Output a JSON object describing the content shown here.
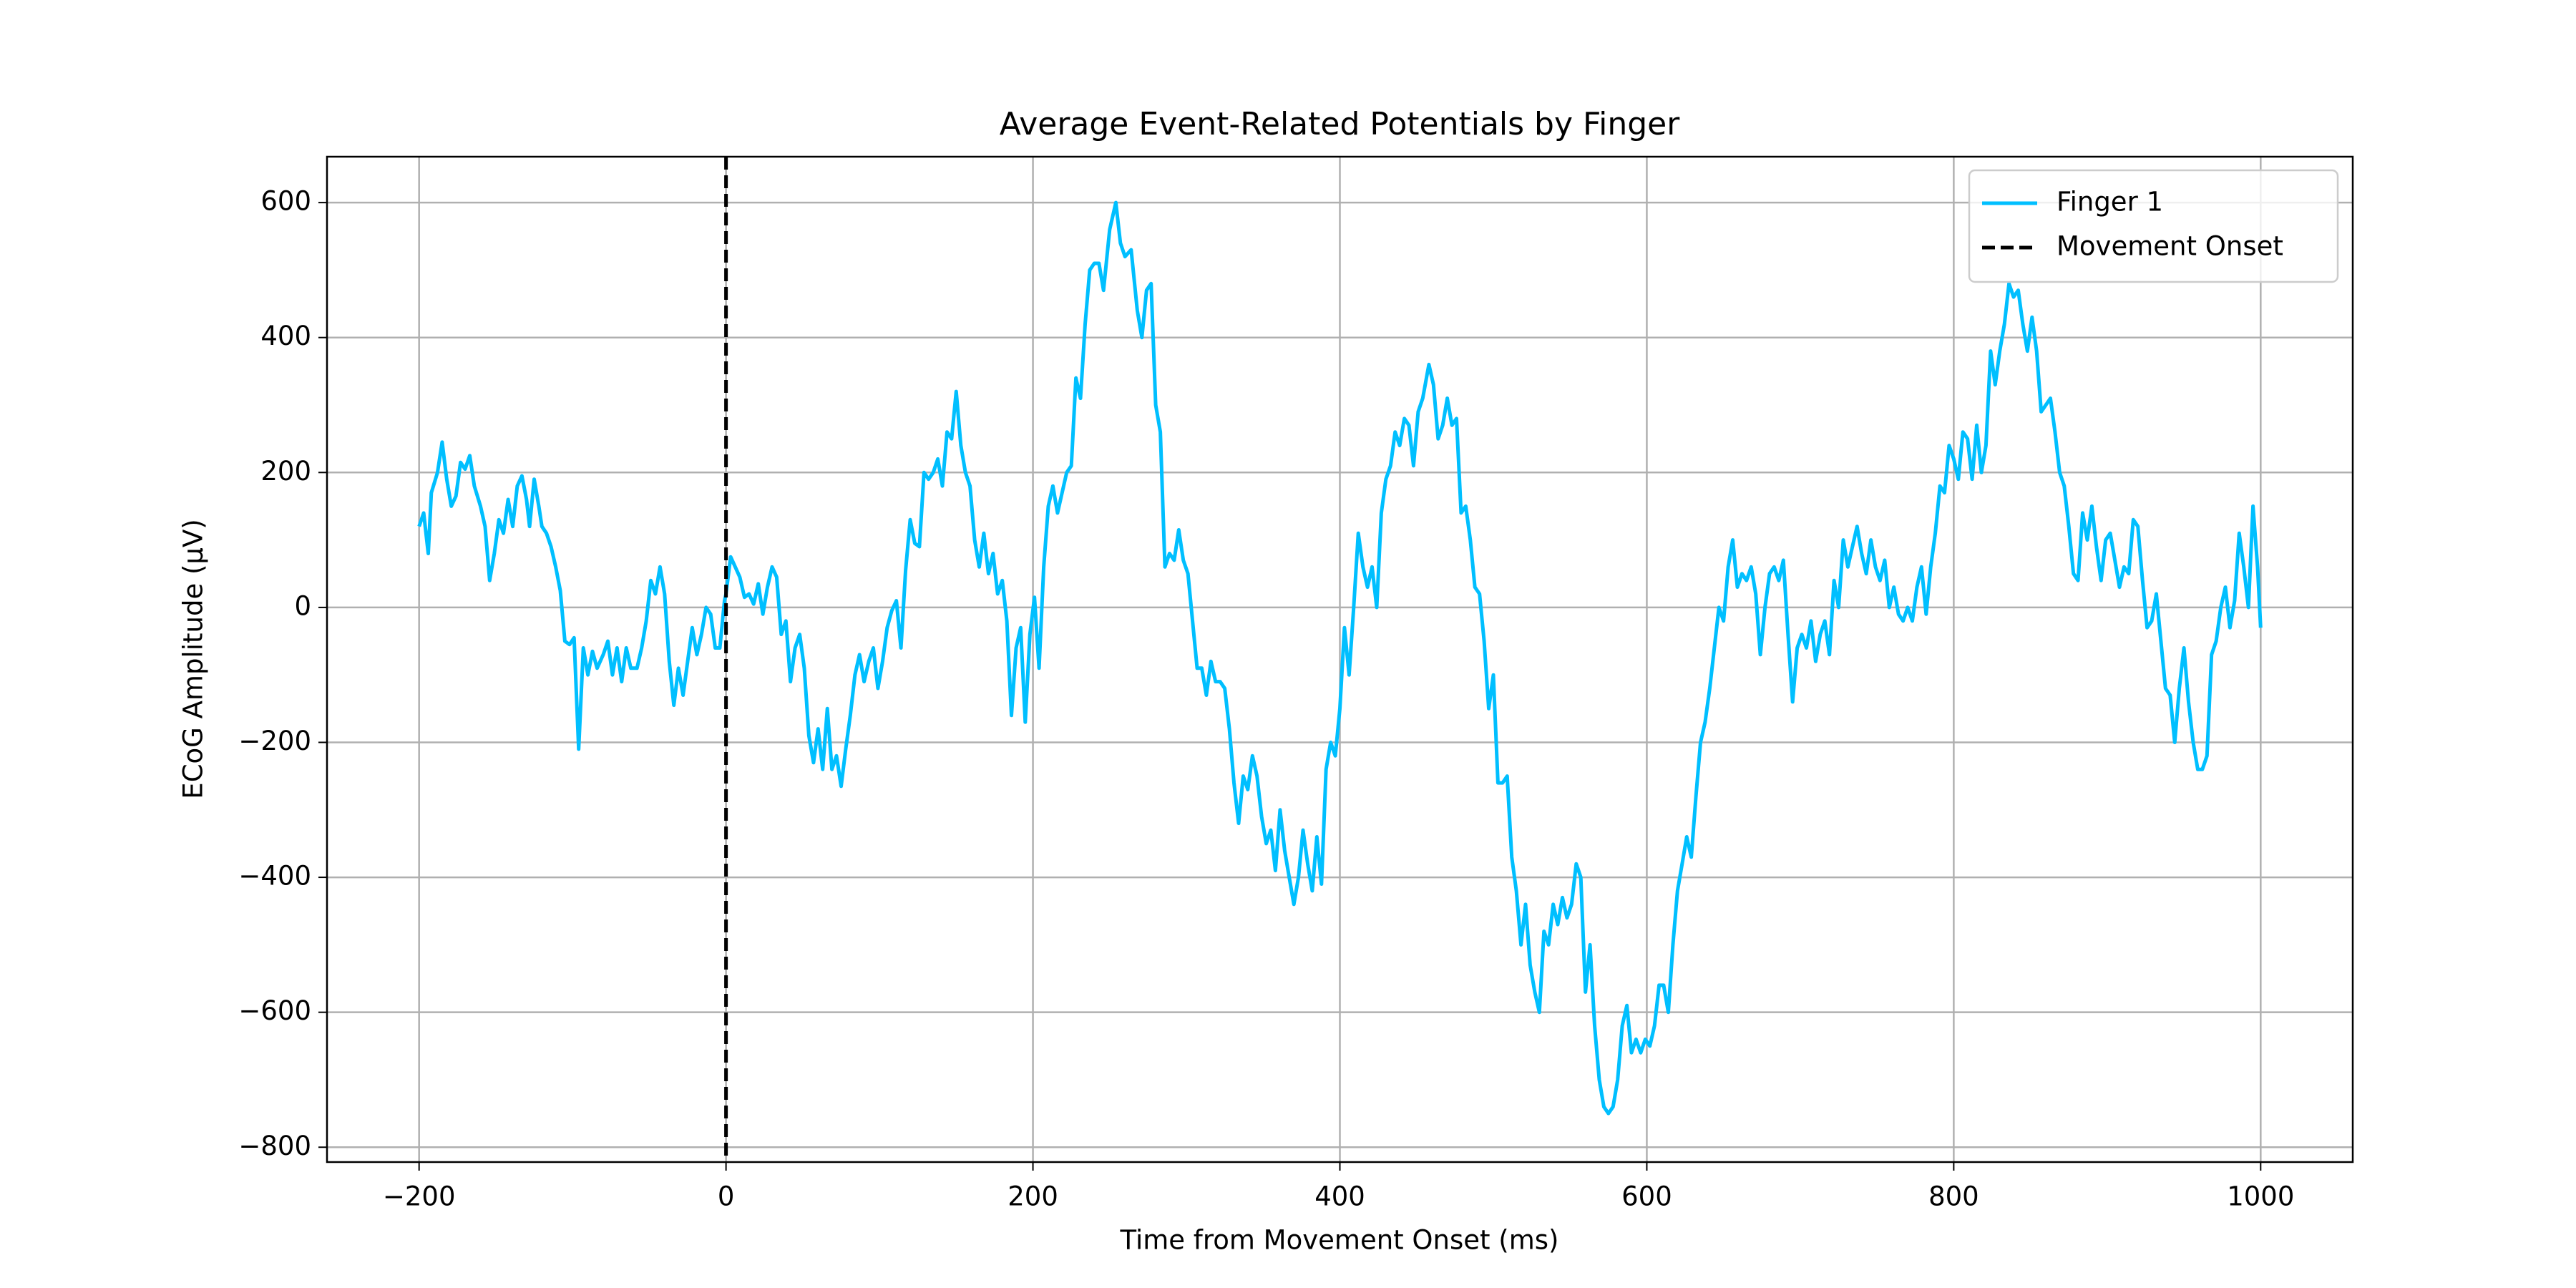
{
  "chart_data": {
    "type": "line",
    "title": "Average Event-Related Potentials by Finger",
    "xlabel": "Time from Movement Onset (ms)",
    "ylabel": "ECoG Amplitude (µV)",
    "xlim": [
      -260,
      1060
    ],
    "ylim": [
      -822,
      668
    ],
    "xticks": [
      {
        "value": -200,
        "label": "−200"
      },
      0,
      200,
      400,
      600,
      800,
      1000
    ],
    "yticks": [
      {
        "value": -800,
        "label": "−800"
      },
      {
        "value": -600,
        "label": "−600"
      },
      {
        "value": -400,
        "label": "−400"
      },
      {
        "value": -200,
        "label": "−200"
      },
      0,
      200,
      400,
      600
    ],
    "grid": true,
    "legend": "upper right",
    "series": [
      {
        "name": "Finger 1",
        "color": "#00bfff",
        "x": [
          -200,
          -197,
          -194,
          -192,
          -188,
          -185,
          -182,
          -179,
          -176,
          -173,
          -170,
          -167,
          -164,
          -160,
          -157,
          -154,
          -151,
          -148,
          -145,
          -142,
          -139,
          -136,
          -133,
          -130,
          -128,
          -125,
          -122,
          -120,
          -117,
          -114,
          -111,
          -108,
          -105,
          -102,
          -99,
          -96,
          -93,
          -90,
          -87,
          -84,
          -80,
          -77,
          -74,
          -71,
          -68,
          -65,
          -62,
          -58,
          -55,
          -52,
          -49,
          -46,
          -43,
          -40,
          -37,
          -34,
          -31,
          -28,
          -25,
          -22,
          -19,
          -16,
          -13,
          -10,
          -7,
          -4,
          -1,
          0,
          3,
          6,
          9,
          12,
          15,
          18,
          21,
          24,
          27,
          30,
          33,
          36,
          39,
          42,
          45,
          48,
          51,
          54,
          57,
          60,
          63,
          66,
          69,
          72,
          75,
          78,
          81,
          84,
          87,
          90,
          93,
          96,
          99,
          102,
          105,
          108,
          111,
          114,
          117,
          120,
          123,
          126,
          129,
          132,
          135,
          138,
          141,
          144,
          147,
          150,
          153,
          156,
          159,
          162,
          165,
          168,
          171,
          174,
          177,
          180,
          183,
          186,
          189,
          192,
          195,
          198,
          201,
          204,
          207,
          210,
          213,
          216,
          219,
          222,
          225,
          228,
          231,
          234,
          237,
          240,
          243,
          246,
          250,
          254,
          257,
          260,
          264,
          268,
          271,
          274,
          277,
          280,
          283,
          286,
          289,
          292,
          295,
          298,
          301,
          304,
          307,
          310,
          313,
          316,
          319,
          322,
          325,
          328,
          331,
          334,
          337,
          340,
          343,
          346,
          349,
          352,
          355,
          358,
          361,
          364,
          367,
          370,
          373,
          376,
          379,
          382,
          385,
          388,
          391,
          394,
          397,
          400,
          403,
          406,
          409,
          412,
          415,
          418,
          421,
          424,
          427,
          430,
          433,
          436,
          439,
          442,
          445,
          448,
          451,
          454,
          458,
          461,
          464,
          467,
          470,
          473,
          476,
          479,
          482,
          485,
          488,
          491,
          494,
          497,
          500,
          503,
          506,
          509,
          512,
          515,
          518,
          521,
          524,
          527,
          530,
          533,
          536,
          539,
          542,
          545,
          548,
          551,
          554,
          557,
          560,
          563,
          566,
          569,
          572,
          575,
          578,
          581,
          584,
          587,
          590,
          593,
          596,
          599,
          602,
          605,
          608,
          611,
          614,
          617,
          620,
          623,
          626,
          629,
          632,
          635,
          638,
          641,
          644,
          647,
          650,
          653,
          656,
          659,
          662,
          665,
          668,
          671,
          674,
          677,
          680,
          683,
          686,
          689,
          692,
          695,
          698,
          701,
          704,
          707,
          710,
          713,
          716,
          719,
          722,
          725,
          728,
          731,
          734,
          737,
          740,
          743,
          746,
          749,
          752,
          755,
          758,
          761,
          764,
          767,
          770,
          773,
          776,
          779,
          782,
          785,
          788,
          791,
          794,
          797,
          800,
          803,
          806,
          809,
          812,
          815,
          818,
          821,
          824,
          827,
          830,
          833,
          836,
          839,
          842,
          845,
          848,
          851,
          854,
          857,
          860,
          863,
          866,
          869,
          872,
          875,
          878,
          881,
          884,
          887,
          890,
          893,
          896,
          899,
          902,
          905,
          908,
          911,
          914,
          917,
          920,
          923,
          926,
          929,
          932,
          935,
          938,
          941,
          944,
          947,
          950,
          953,
          956,
          959,
          962,
          965,
          968,
          971,
          974,
          977,
          980,
          983,
          986,
          989,
          992,
          995,
          998,
          1000
        ],
        "values": [
          120,
          140,
          80,
          170,
          200,
          245,
          190,
          150,
          165,
          215,
          205,
          225,
          180,
          150,
          120,
          40,
          80,
          130,
          110,
          160,
          120,
          180,
          195,
          160,
          120,
          190,
          150,
          120,
          110,
          90,
          60,
          25,
          -50,
          -55,
          -45,
          -210,
          -60,
          -100,
          -65,
          -90,
          -70,
          -50,
          -100,
          -60,
          -110,
          -60,
          -90,
          -90,
          -60,
          -20,
          40,
          20,
          60,
          20,
          -80,
          -145,
          -90,
          -130,
          -80,
          -30,
          -70,
          -40,
          0,
          -10,
          -60,
          -60,
          10,
          20,
          75,
          60,
          45,
          15,
          20,
          5,
          35,
          -10,
          30,
          60,
          45,
          -40,
          -20,
          -110,
          -60,
          -40,
          -90,
          -190,
          -230,
          -180,
          -240,
          -150,
          -240,
          -220,
          -265,
          -210,
          -160,
          -100,
          -70,
          -110,
          -80,
          -60,
          -120,
          -80,
          -30,
          -5,
          10,
          -60,
          55,
          130,
          95,
          90,
          200,
          190,
          200,
          220,
          180,
          260,
          250,
          320,
          240,
          200,
          180,
          100,
          60,
          110,
          50,
          80,
          20,
          40,
          -20,
          -160,
          -60,
          -30,
          -170,
          -40,
          15,
          -90,
          60,
          150,
          180,
          140,
          170,
          200,
          210,
          340,
          310,
          420,
          500,
          510,
          510,
          470,
          560,
          600,
          540,
          520,
          530,
          440,
          400,
          470,
          480,
          300,
          260,
          60,
          80,
          70,
          115,
          70,
          50,
          -20,
          -90,
          -90,
          -130,
          -80,
          -110,
          -110,
          -120,
          -180,
          -260,
          -320,
          -250,
          -270,
          -220,
          -250,
          -310,
          -350,
          -330,
          -390,
          -300,
          -360,
          -400,
          -440,
          -400,
          -330,
          -380,
          -420,
          -340,
          -410,
          -240,
          -200,
          -220,
          -150,
          -30,
          -100,
          0,
          110,
          60,
          30,
          60,
          0,
          140,
          190,
          210,
          260,
          240,
          280,
          270,
          210,
          290,
          310,
          360,
          330,
          250,
          270,
          310,
          270,
          280,
          140,
          150,
          100,
          30,
          20,
          -50,
          -150,
          -100,
          -260,
          -260,
          -250,
          -370,
          -420,
          -500,
          -440,
          -530,
          -570,
          -600,
          -480,
          -500,
          -440,
          -470,
          -430,
          -460,
          -440,
          -380,
          -400,
          -570,
          -500,
          -620,
          -700,
          -740,
          -750,
          -740,
          -700,
          -620,
          -590,
          -660,
          -640,
          -660,
          -640,
          -650,
          -620,
          -560,
          -560,
          -600,
          -500,
          -420,
          -380,
          -340,
          -370,
          -280,
          -200,
          -170,
          -120,
          -60,
          0,
          -20,
          60,
          100,
          30,
          50,
          40,
          60,
          20,
          -70,
          0,
          50,
          60,
          40,
          70,
          -40,
          -140,
          -60,
          -40,
          -60,
          -20,
          -80,
          -40,
          -20,
          -70,
          40,
          0,
          100,
          60,
          90,
          120,
          80,
          50,
          100,
          60,
          40,
          70,
          0,
          30,
          -10,
          -20,
          0,
          -20,
          30,
          60,
          -10,
          60,
          110,
          180,
          170,
          240,
          220,
          190,
          260,
          250,
          190,
          270,
          200,
          240,
          380,
          330,
          380,
          420,
          480,
          460,
          470,
          420,
          380,
          430,
          380,
          290,
          300,
          310,
          260,
          200,
          180,
          120,
          50,
          40,
          140,
          100,
          150,
          90,
          40,
          100,
          110,
          70,
          30,
          60,
          50,
          130,
          120,
          40,
          -30,
          -20,
          20,
          -50,
          -120,
          -130,
          -200,
          -120,
          -60,
          -140,
          -200,
          -240,
          -240,
          -220,
          -70,
          -50,
          0,
          30,
          -30,
          10,
          110,
          60,
          0,
          150,
          60,
          -30
        ]
      }
    ],
    "vlines": [
      {
        "name": "Movement Onset",
        "x": 0,
        "color": "#000000",
        "linestyle": "dashed"
      }
    ]
  }
}
